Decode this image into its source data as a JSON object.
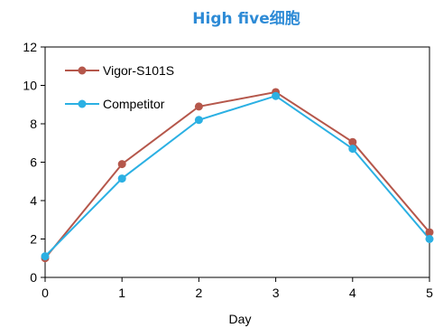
{
  "chart_data": {
    "type": "line",
    "title": "High five细胞",
    "xlabel": "Day",
    "ylabel": "",
    "x": [
      0,
      1,
      2,
      3,
      4,
      5
    ],
    "x_tick_labels": [
      "0",
      "1",
      "2",
      "3",
      "4",
      "5"
    ],
    "y_tick_labels": [
      "0",
      "2",
      "4",
      "6",
      "8",
      "10",
      "12"
    ],
    "xlim": [
      0,
      5
    ],
    "ylim": [
      0,
      12
    ],
    "grid": false,
    "legend_position": "top-left",
    "series": [
      {
        "name": "Vigor-S101S",
        "color": "#b5574b",
        "values": [
          1.0,
          5.9,
          8.9,
          9.65,
          7.05,
          2.35
        ]
      },
      {
        "name": "Competitor",
        "color": "#2bb0e3",
        "values": [
          1.1,
          5.15,
          8.2,
          9.45,
          6.7,
          2.0
        ]
      }
    ]
  }
}
